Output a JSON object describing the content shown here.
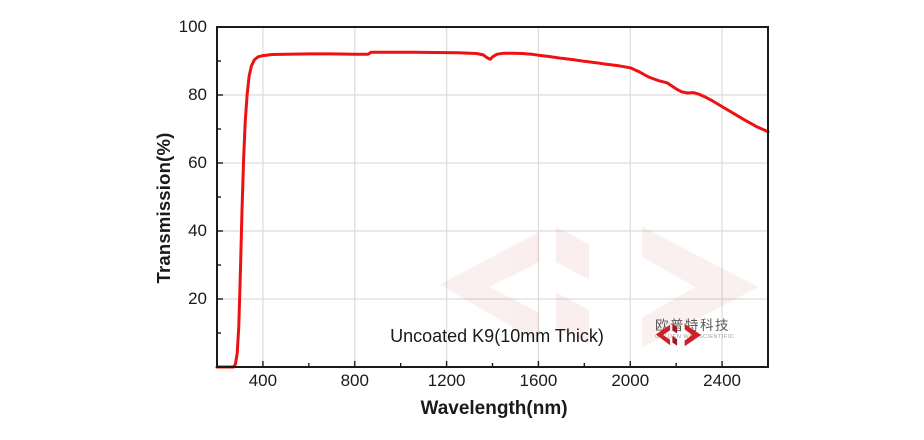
{
  "chart_data": {
    "type": "line",
    "title": "",
    "xlabel": "Wavelength(nm)",
    "ylabel": "Transmission(%)",
    "xlim": [
      200,
      2600
    ],
    "ylim": [
      0,
      100
    ],
    "x_major_ticks": [
      400,
      800,
      1200,
      1600,
      2000,
      2400
    ],
    "x_minor_step": 200,
    "y_major_ticks": [
      20,
      40,
      60,
      80,
      100
    ],
    "y_minor_step": 10,
    "grid": true,
    "legend": "none",
    "annotation": "Uncoated K9(10mm Thick)",
    "series": [
      {
        "name": "Uncoated K9 10mm transmission",
        "color": "#ee1111",
        "points": [
          [
            200,
            0
          ],
          [
            260,
            0
          ],
          [
            272,
            0
          ],
          [
            280,
            0.8
          ],
          [
            288,
            4
          ],
          [
            295,
            12
          ],
          [
            302,
            28
          ],
          [
            309,
            46
          ],
          [
            316,
            61
          ],
          [
            323,
            72
          ],
          [
            331,
            80
          ],
          [
            340,
            85.5
          ],
          [
            350,
            88.5
          ],
          [
            362,
            90.3
          ],
          [
            378,
            91.2
          ],
          [
            400,
            91.6
          ],
          [
            440,
            91.9
          ],
          [
            500,
            92.0
          ],
          [
            600,
            92.1
          ],
          [
            700,
            92.1
          ],
          [
            800,
            92.0
          ],
          [
            858,
            92.0
          ],
          [
            872,
            92.6
          ],
          [
            950,
            92.6
          ],
          [
            1050,
            92.6
          ],
          [
            1150,
            92.5
          ],
          [
            1250,
            92.4
          ],
          [
            1330,
            92.2
          ],
          [
            1360,
            91.8
          ],
          [
            1378,
            90.9
          ],
          [
            1390,
            90.5
          ],
          [
            1402,
            91.3
          ],
          [
            1420,
            92.0
          ],
          [
            1450,
            92.3
          ],
          [
            1490,
            92.3
          ],
          [
            1530,
            92.2
          ],
          [
            1570,
            92.0
          ],
          [
            1600,
            91.7
          ],
          [
            1650,
            91.3
          ],
          [
            1700,
            90.8
          ],
          [
            1750,
            90.4
          ],
          [
            1800,
            89.9
          ],
          [
            1850,
            89.5
          ],
          [
            1900,
            89.0
          ],
          [
            1950,
            88.6
          ],
          [
            2000,
            88.0
          ],
          [
            2040,
            86.8
          ],
          [
            2080,
            85.3
          ],
          [
            2120,
            84.3
          ],
          [
            2160,
            83.6
          ],
          [
            2200,
            81.8
          ],
          [
            2225,
            80.9
          ],
          [
            2250,
            80.6
          ],
          [
            2275,
            80.7
          ],
          [
            2300,
            80.2
          ],
          [
            2330,
            79.3
          ],
          [
            2360,
            78.2
          ],
          [
            2400,
            76.6
          ],
          [
            2450,
            74.6
          ],
          [
            2500,
            72.6
          ],
          [
            2550,
            70.7
          ],
          [
            2600,
            69.2
          ]
        ]
      }
    ]
  },
  "logo": {
    "name_cn": "欧普特科技",
    "name_en": "GOLDEN WAY SCIENTIFIC"
  },
  "colors": {
    "curve": "#ee1111",
    "grid": "#dcdcdc",
    "axis": "#1a1a1a",
    "watermark": "#c9463a",
    "logo_red": "#cf1f27",
    "logo_dark_red": "#a3161d"
  }
}
